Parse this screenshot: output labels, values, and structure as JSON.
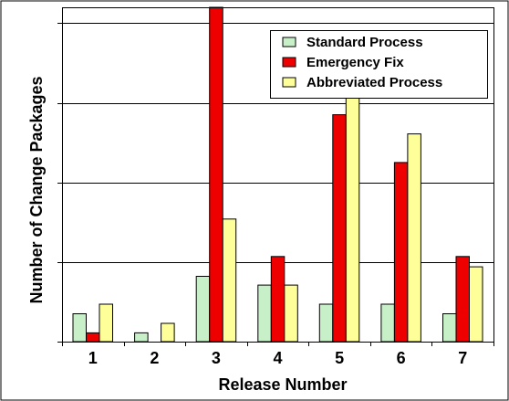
{
  "chart_data": {
    "type": "bar",
    "title": "",
    "xlabel": "Release Number",
    "ylabel": "Number of Change Packages",
    "categories": [
      "1",
      "2",
      "3",
      "4",
      "5",
      "6",
      "7"
    ],
    "ylim": [
      0,
      4.2
    ],
    "yticks": [
      0,
      1,
      2,
      3,
      4
    ],
    "y_tick_labels_visible": false,
    "grid": "horizontal",
    "legend_position": "top-right",
    "series": [
      {
        "name": "Standard Process",
        "color": "#c8f0c8",
        "values": [
          0.35,
          0.11,
          0.82,
          0.71,
          0.47,
          0.47,
          0.35
        ]
      },
      {
        "name": "Emergency Fix",
        "color": "#ee0000",
        "values": [
          0.11,
          0.0,
          4.4,
          1.07,
          2.85,
          2.25,
          1.07
        ]
      },
      {
        "name": "Abbreviated Process",
        "color": "#ffff99",
        "values": [
          0.47,
          0.23,
          1.54,
          0.71,
          3.56,
          2.61,
          0.94
        ]
      }
    ],
    "colors": {
      "background": "#ffffff",
      "axis": "#000000",
      "grid": "#000000",
      "bar_outline": "#000000"
    }
  }
}
